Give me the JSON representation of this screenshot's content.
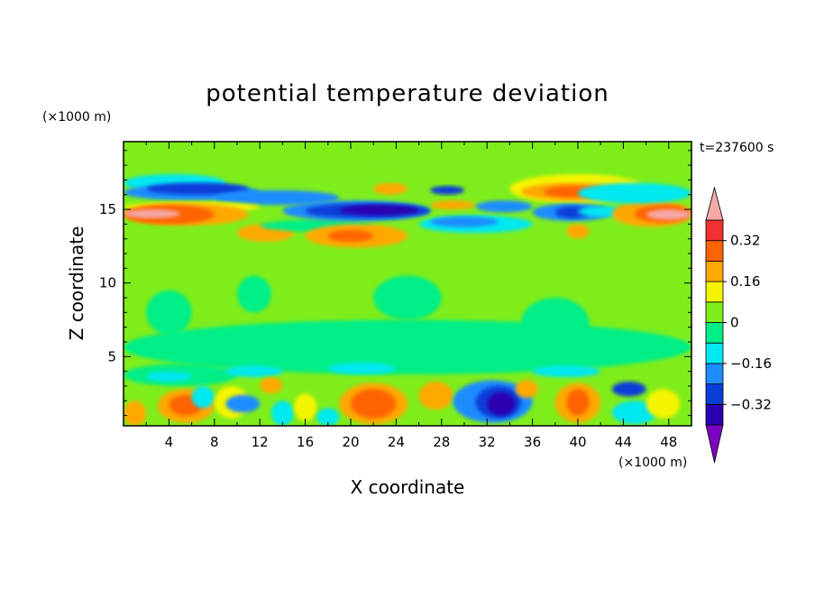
{
  "chart_data": {
    "type": "heatmap",
    "title": "potential temperature deviation",
    "xlabel": "X coordinate",
    "ylabel": "Z coordinate",
    "x_unit": "(×1000 m)",
    "y_unit": "(×1000 m)",
    "time_label": "t=237600 s",
    "xlim": [
      0,
      50
    ],
    "ylim": [
      0.3,
      19.6
    ],
    "x_ticks": [
      4,
      8,
      12,
      16,
      20,
      24,
      28,
      32,
      36,
      40,
      44,
      48
    ],
    "y_ticks": [
      5,
      10,
      15
    ],
    "levels": [
      -0.4,
      -0.32,
      -0.24,
      -0.16,
      -0.08,
      0,
      0.08,
      0.16,
      0.24,
      0.32,
      0.4
    ],
    "colorbar_tick_labels": [
      "0.32",
      "0.16",
      "0",
      "−0.16",
      "−0.32"
    ],
    "colorbar_tick_values": [
      0.32,
      0.16,
      0,
      -0.16,
      -0.32
    ],
    "background_value": 0.04,
    "field": [
      {
        "x": [
          0,
          50
        ],
        "y": [
          12.8,
          17.5
        ],
        "value": 0.02
      },
      {
        "x": [
          0,
          50
        ],
        "y": [
          3.8,
          7.5
        ],
        "value": -0.02
      },
      {
        "x": [
          22,
          42
        ],
        "y": [
          17,
          19.6
        ],
        "value": 0.02
      },
      {
        "x": [
          0,
          9
        ],
        "y": [
          16.2,
          17.4
        ],
        "value": -0.1
      },
      {
        "x": [
          0,
          12
        ],
        "y": [
          15.6,
          16.7
        ],
        "value": -0.2
      },
      {
        "x": [
          2,
          11
        ],
        "y": [
          16,
          16.8
        ],
        "value": -0.3
      },
      {
        "x": [
          8,
          19
        ],
        "y": [
          15.3,
          16.3
        ],
        "value": -0.2
      },
      {
        "x": [
          0,
          12
        ],
        "y": [
          14.8,
          15.5
        ],
        "value": 0.1
      },
      {
        "x": [
          0,
          11
        ],
        "y": [
          13.9,
          15.4
        ],
        "value": 0.2
      },
      {
        "x": [
          0,
          8
        ],
        "y": [
          14,
          15.3
        ],
        "value": 0.3
      },
      {
        "x": [
          0,
          5
        ],
        "y": [
          14.4,
          15.0
        ],
        "value": 0.45
      },
      {
        "x": [
          10,
          15
        ],
        "y": [
          12.8,
          14
        ],
        "value": 0.2
      },
      {
        "x": [
          12,
          22
        ],
        "y": [
          13.5,
          14.3
        ],
        "value": -0.08
      },
      {
        "x": [
          14,
          27
        ],
        "y": [
          14.2,
          15.6
        ],
        "value": -0.2
      },
      {
        "x": [
          16,
          27
        ],
        "y": [
          14.4,
          15.4
        ],
        "value": -0.3
      },
      {
        "x": [
          19,
          26
        ],
        "y": [
          14.6,
          15.3
        ],
        "value": -0.4
      },
      {
        "x": [
          22,
          25
        ],
        "y": [
          16,
          16.8
        ],
        "value": 0.2
      },
      {
        "x": [
          16,
          25
        ],
        "y": [
          12.4,
          14
        ],
        "value": 0.2
      },
      {
        "x": [
          18,
          22
        ],
        "y": [
          12.8,
          13.6
        ],
        "value": 0.3
      },
      {
        "x": [
          26,
          36
        ],
        "y": [
          13.4,
          14.6
        ],
        "value": -0.1
      },
      {
        "x": [
          27,
          33
        ],
        "y": [
          13.8,
          14.5
        ],
        "value": -0.18
      },
      {
        "x": [
          27,
          30
        ],
        "y": [
          16,
          16.6
        ],
        "value": -0.25
      },
      {
        "x": [
          27,
          31
        ],
        "y": [
          15,
          15.6
        ],
        "value": 0.2
      },
      {
        "x": [
          31,
          36
        ],
        "y": [
          14.8,
          15.6
        ],
        "value": -0.2
      },
      {
        "x": [
          34,
          46
        ],
        "y": [
          15.4,
          17.4
        ],
        "value": 0.1
      },
      {
        "x": [
          35,
          44
        ],
        "y": [
          15.6,
          16.8
        ],
        "value": 0.2
      },
      {
        "x": [
          37,
          42
        ],
        "y": [
          15.8,
          16.6
        ],
        "value": 0.27
      },
      {
        "x": [
          36,
          43
        ],
        "y": [
          14.2,
          15.4
        ],
        "value": -0.2
      },
      {
        "x": [
          38,
          41
        ],
        "y": [
          14.4,
          15.2
        ],
        "value": -0.3
      },
      {
        "x": [
          39,
          41
        ],
        "y": [
          13,
          14
        ],
        "value": 0.2
      },
      {
        "x": [
          40,
          45
        ],
        "y": [
          14.5,
          15.2
        ],
        "value": -0.1
      },
      {
        "x": [
          43,
          50
        ],
        "y": [
          13.8,
          15.6
        ],
        "value": 0.2
      },
      {
        "x": [
          45,
          50
        ],
        "y": [
          14.1,
          15.3
        ],
        "value": 0.3
      },
      {
        "x": [
          46,
          50
        ],
        "y": [
          14.3,
          15.0
        ],
        "value": 0.45
      },
      {
        "x": [
          40,
          50
        ],
        "y": [
          15.4,
          16.8
        ],
        "value": -0.1
      },
      {
        "x": [
          2,
          6
        ],
        "y": [
          6.5,
          9.5
        ],
        "value": -0.02
      },
      {
        "x": [
          10,
          13
        ],
        "y": [
          8,
          10.5
        ],
        "value": -0.02
      },
      {
        "x": [
          22,
          28
        ],
        "y": [
          7.5,
          10.5
        ],
        "value": -0.02
      },
      {
        "x": [
          35,
          41
        ],
        "y": [
          5.5,
          9
        ],
        "value": -0.02
      },
      {
        "x": [
          0,
          10
        ],
        "y": [
          3,
          4.5
        ],
        "value": -0.06
      },
      {
        "x": [
          2,
          6
        ],
        "y": [
          3.3,
          4
        ],
        "value": -0.12
      },
      {
        "x": [
          9,
          14
        ],
        "y": [
          3.6,
          4.4
        ],
        "value": -0.12
      },
      {
        "x": [
          18,
          24
        ],
        "y": [
          3.8,
          4.6
        ],
        "value": -0.12
      },
      {
        "x": [
          36,
          42
        ],
        "y": [
          3.6,
          4.4
        ],
        "value": -0.12
      },
      {
        "x": [
          0,
          2
        ],
        "y": [
          0.3,
          2
        ],
        "value": 0.2
      },
      {
        "x": [
          3,
          8
        ],
        "y": [
          0.5,
          2.8
        ],
        "value": 0.2
      },
      {
        "x": [
          4,
          7
        ],
        "y": [
          1,
          2.4
        ],
        "value": 0.3
      },
      {
        "x": [
          6,
          8
        ],
        "y": [
          1.5,
          3
        ],
        "value": -0.12
      },
      {
        "x": [
          8,
          11
        ],
        "y": [
          0.8,
          3
        ],
        "value": 0.12
      },
      {
        "x": [
          9,
          12
        ],
        "y": [
          1.2,
          2.4
        ],
        "value": -0.2
      },
      {
        "x": [
          12,
          14
        ],
        "y": [
          2.5,
          3.6
        ],
        "value": 0.2
      },
      {
        "x": [
          13,
          15
        ],
        "y": [
          0.3,
          2
        ],
        "value": -0.12
      },
      {
        "x": [
          15,
          17
        ],
        "y": [
          0.6,
          2.5
        ],
        "value": 0.1
      },
      {
        "x": [
          17,
          19
        ],
        "y": [
          0.3,
          1.5
        ],
        "value": -0.1
      },
      {
        "x": [
          19,
          25
        ],
        "y": [
          0.4,
          3.2
        ],
        "value": 0.2
      },
      {
        "x": [
          20,
          24
        ],
        "y": [
          0.8,
          2.8
        ],
        "value": 0.28
      },
      {
        "x": [
          26,
          29
        ],
        "y": [
          1.4,
          3.3
        ],
        "value": 0.2
      },
      {
        "x": [
          29,
          36
        ],
        "y": [
          0.5,
          3.4
        ],
        "value": -0.2
      },
      {
        "x": [
          31,
          35
        ],
        "y": [
          0.8,
          3.0
        ],
        "value": -0.3
      },
      {
        "x": [
          32,
          34.5
        ],
        "y": [
          1,
          2.6
        ],
        "value": -0.4
      },
      {
        "x": [
          34.5,
          36.5
        ],
        "y": [
          2.2,
          3.4
        ],
        "value": 0.2
      },
      {
        "x": [
          38,
          42
        ],
        "y": [
          0.5,
          3.2
        ],
        "value": 0.2
      },
      {
        "x": [
          39,
          41
        ],
        "y": [
          1,
          2.8
        ],
        "value": 0.28
      },
      {
        "x": [
          43,
          46
        ],
        "y": [
          2.3,
          3.3
        ],
        "value": -0.25
      },
      {
        "x": [
          43,
          47
        ],
        "y": [
          0.4,
          2
        ],
        "value": -0.12
      },
      {
        "x": [
          46,
          49
        ],
        "y": [
          0.8,
          2.8
        ],
        "value": 0.15
      }
    ]
  },
  "colors": {
    "levels": [
      "#7d00c0",
      "#2a00b0",
      "#0a3ed8",
      "#1c8cff",
      "#00e8f0",
      "#00ee88",
      "#7eed1a",
      "#f4f400",
      "#ffa800",
      "#ff6400",
      "#f23030",
      "#f4a8a8"
    ]
  }
}
